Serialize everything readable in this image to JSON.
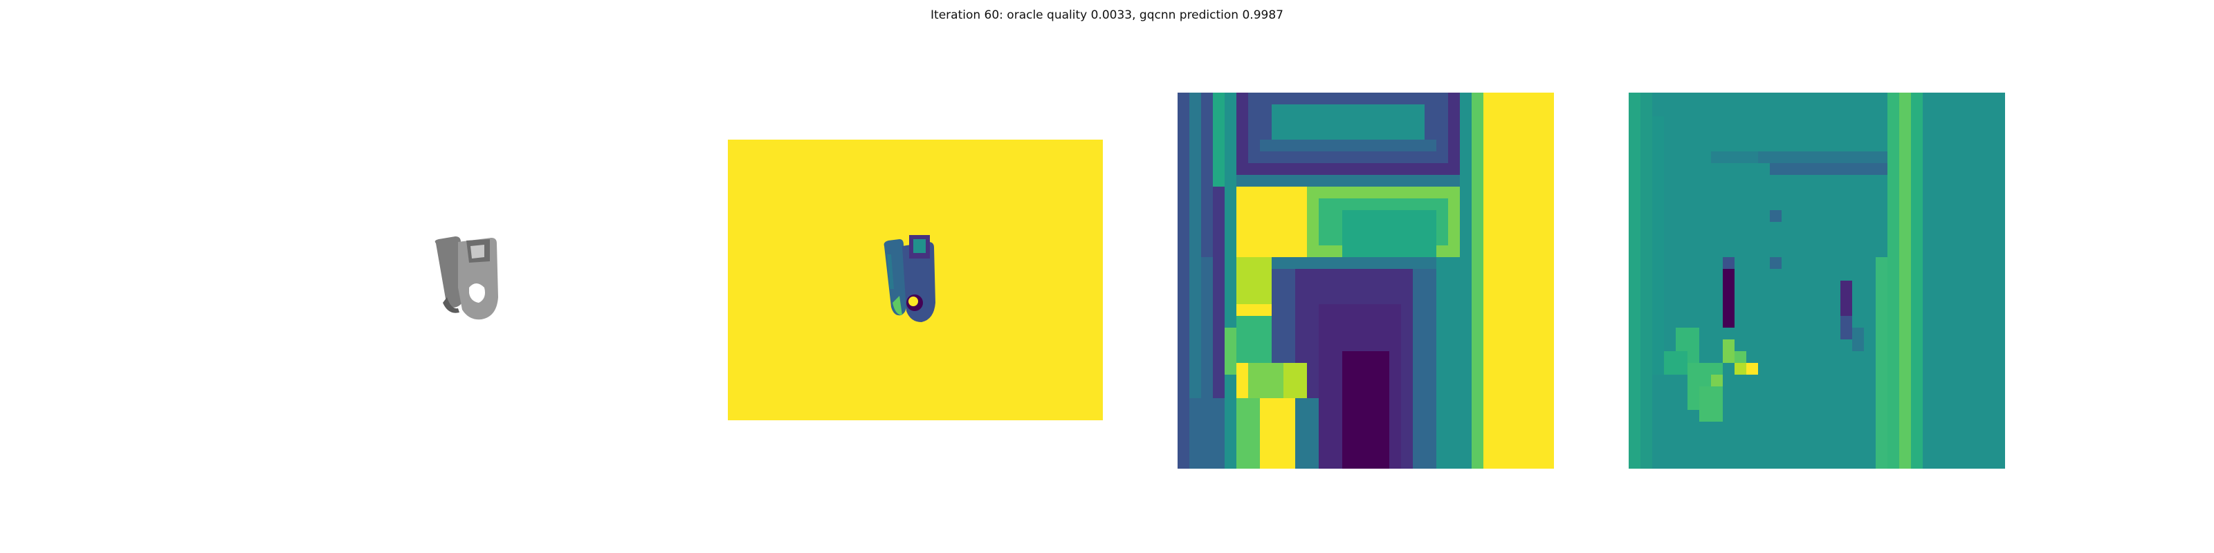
{
  "figure": {
    "title": "Iteration 60: oracle quality 0.0033, gqcnn prediction 0.9987"
  },
  "panels": [
    {
      "content": "color rendering of object (gray)"
    },
    {
      "content": "depth image (viridis colormap)"
    },
    {
      "content": "zoomed depth crop (viridis colormap)"
    },
    {
      "content": "gradient / activation map (viridis colormap)"
    }
  ],
  "colors": {
    "viridis_yellow": "#fde725",
    "viridis_purple": "#440154",
    "viridis_teal": "#21918c",
    "viridis_blue": "#3b528b",
    "viridis_green": "#5ec962",
    "object_gray": "#8a8a8a"
  }
}
